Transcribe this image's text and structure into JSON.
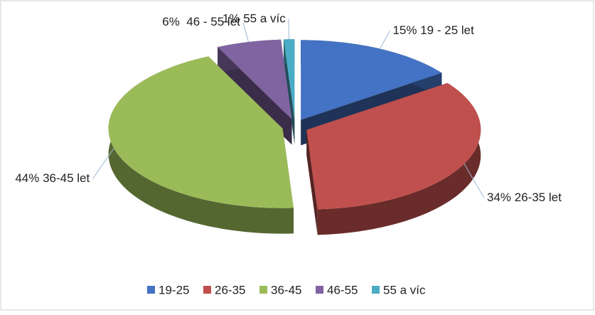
{
  "chart_data": {
    "type": "pie",
    "categories": [
      "19-25",
      "26-35",
      "36-45",
      "46-55",
      "55 a víc"
    ],
    "values": [
      15,
      34,
      44,
      6,
      1
    ],
    "value_labels": [
      "15% 19 - 25 let",
      "34% 26-35 let",
      "44% 36-45 let",
      "6%  46 - 55 let",
      "1% 55 a víc"
    ],
    "colors": [
      "#4472c4",
      "#c0504d",
      "#9bbb59",
      "#8064a2",
      "#4bacc6"
    ],
    "legend": "bottom"
  }
}
